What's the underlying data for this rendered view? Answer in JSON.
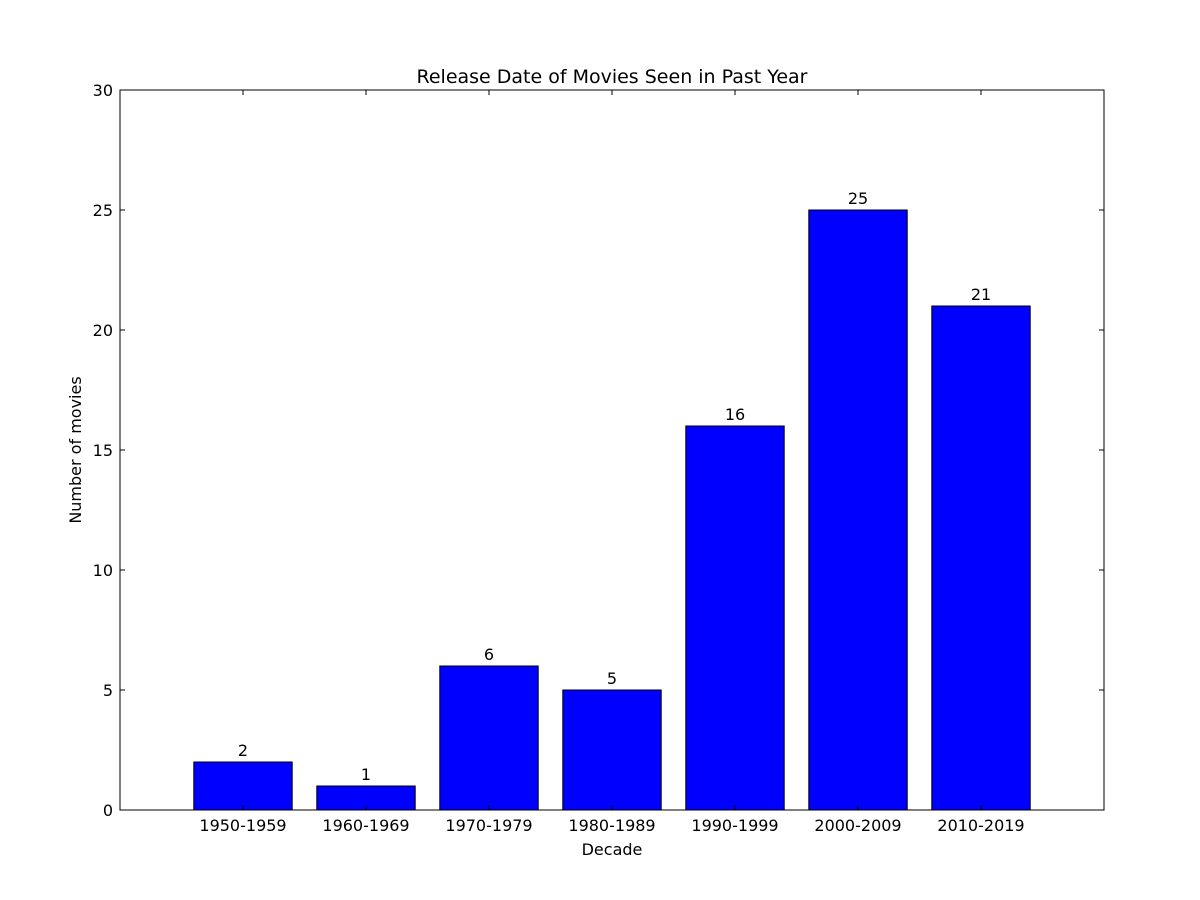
{
  "chart_data": {
    "type": "bar",
    "title": "Release Date of Movies Seen in Past Year",
    "xlabel": "Decade",
    "ylabel": "Number of movies",
    "categories": [
      "1950-1959",
      "1960-1969",
      "1970-1979",
      "1980-1989",
      "1990-1999",
      "2000-2009",
      "2010-2019"
    ],
    "values": [
      2,
      1,
      6,
      5,
      16,
      25,
      21
    ],
    "data_labels": [
      "2",
      "1",
      "6",
      "5",
      "16",
      "25",
      "21"
    ],
    "ylim": [
      0,
      30
    ],
    "yticks": [
      0,
      5,
      10,
      15,
      20,
      25,
      30
    ],
    "ytick_labels": [
      "0",
      "5",
      "10",
      "15",
      "20",
      "25",
      "30"
    ],
    "grid": false,
    "legend": "none",
    "bar_color": "#0000ff",
    "edge_color": "#000000"
  }
}
